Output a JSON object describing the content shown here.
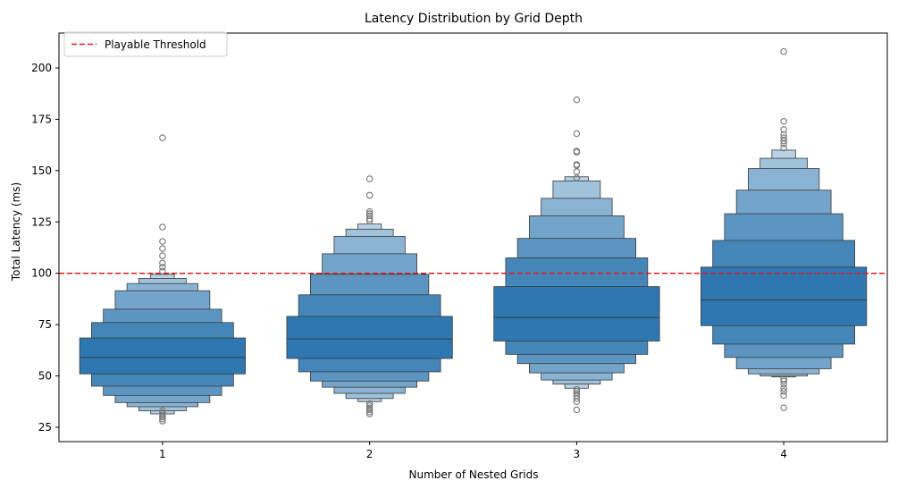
{
  "chart_data": {
    "type": "boxen",
    "title": "Latency Distribution by Grid Depth",
    "xlabel": "Number of Nested Grids",
    "ylabel": "Total Latency (ms)",
    "ylim": [
      18,
      217
    ],
    "yticks": [
      25,
      50,
      75,
      100,
      125,
      150,
      175,
      200
    ],
    "categories": [
      "1",
      "2",
      "3",
      "4"
    ],
    "threshold": {
      "value": 100,
      "label": "Playable Threshold",
      "color": "#e41a1c",
      "style": "dashed"
    },
    "legend_position": "top-left",
    "colors": {
      "box": "#2e77b0",
      "edge": "#3a3a3a",
      "outlier": "#777777",
      "axis": "#000000"
    },
    "boxes": [
      {
        "category": "1",
        "median": 59,
        "levels": [
          {
            "lo": 51,
            "hi": 68.5
          },
          {
            "lo": 45,
            "hi": 76
          },
          {
            "lo": 40.5,
            "hi": 82.5
          },
          {
            "lo": 37,
            "hi": 91.5
          },
          {
            "lo": 35,
            "hi": 95
          },
          {
            "lo": 33,
            "hi": 97.5
          },
          {
            "lo": 31.5,
            "hi": 99.5
          }
        ],
        "outliers": [
          28,
          29,
          30,
          31,
          32,
          33,
          101,
          103,
          105,
          108.5,
          112,
          115.5,
          122.5,
          166
        ]
      },
      {
        "category": "2",
        "median": 68,
        "levels": [
          {
            "lo": 58.5,
            "hi": 79
          },
          {
            "lo": 52,
            "hi": 89.5
          },
          {
            "lo": 47.5,
            "hi": 99.5
          },
          {
            "lo": 44.5,
            "hi": 109.5
          },
          {
            "lo": 41.5,
            "hi": 118
          },
          {
            "lo": 39,
            "hi": 121.5
          },
          {
            "lo": 37.5,
            "hi": 124
          }
        ],
        "outliers": [
          31.5,
          32.5,
          33.5,
          34.5,
          35.5,
          36.5,
          125.5,
          126.5,
          128,
          129,
          130,
          138,
          146
        ]
      },
      {
        "category": "3",
        "median": 78.5,
        "levels": [
          {
            "lo": 67,
            "hi": 93.5
          },
          {
            "lo": 60.5,
            "hi": 107.5
          },
          {
            "lo": 56,
            "hi": 117
          },
          {
            "lo": 51.5,
            "hi": 128
          },
          {
            "lo": 48,
            "hi": 136.5
          },
          {
            "lo": 46,
            "hi": 145
          },
          {
            "lo": 44,
            "hi": 147
          }
        ],
        "outliers": [
          33.5,
          37.5,
          39,
          40.5,
          41.5,
          42.5,
          43.5,
          146.5,
          149.5,
          152.5,
          153,
          159,
          159.5,
          168,
          184.5
        ]
      },
      {
        "category": "4",
        "median": 87,
        "levels": [
          {
            "lo": 74.5,
            "hi": 103
          },
          {
            "lo": 65.5,
            "hi": 116
          },
          {
            "lo": 59,
            "hi": 129
          },
          {
            "lo": 53.5,
            "hi": 140.5
          },
          {
            "lo": 51,
            "hi": 151
          },
          {
            "lo": 50,
            "hi": 156
          },
          {
            "lo": 49.5,
            "hi": 160
          }
        ],
        "outliers": [
          34.5,
          40.5,
          42.5,
          44,
          46,
          47.5,
          48.5,
          161,
          163,
          164.5,
          166,
          167.5,
          170,
          174,
          208
        ]
      }
    ]
  }
}
